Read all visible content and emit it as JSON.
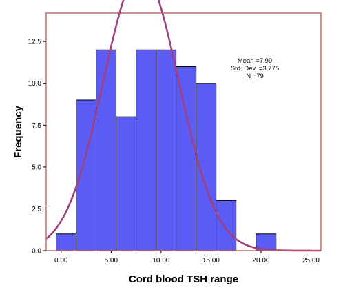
{
  "chart_data": {
    "type": "bar",
    "subtype": "histogram",
    "xlabel": "Cord blood TSH range",
    "ylabel": "Frequency",
    "xlim": [
      -1.5,
      26.0
    ],
    "ylim": [
      0,
      14.2
    ],
    "x_ticks": [
      0,
      5,
      10,
      15,
      20,
      25
    ],
    "x_tick_labels": [
      "0.00",
      "5.00",
      "10.00",
      "15.00",
      "20.00",
      "25.00"
    ],
    "y_ticks": [
      0,
      2.5,
      5,
      7.5,
      10,
      12.5
    ],
    "y_tick_labels": [
      "0.0",
      "2.5",
      "5.0",
      "7.5",
      "10.0",
      "12.5"
    ],
    "bins": [
      {
        "x0": -0.5,
        "x1": 1.5,
        "value": 1
      },
      {
        "x0": 1.5,
        "x1": 3.5,
        "value": 9
      },
      {
        "x0": 3.5,
        "x1": 5.5,
        "value": 12
      },
      {
        "x0": 5.5,
        "x1": 7.5,
        "value": 8
      },
      {
        "x0": 7.5,
        "x1": 9.5,
        "value": 12
      },
      {
        "x0": 9.5,
        "x1": 11.5,
        "value": 12
      },
      {
        "x0": 11.5,
        "x1": 13.5,
        "value": 11
      },
      {
        "x0": 13.5,
        "x1": 15.5,
        "value": 10
      },
      {
        "x0": 15.5,
        "x1": 17.5,
        "value": 3
      },
      {
        "x0": 19.5,
        "x1": 21.5,
        "value": 1
      }
    ],
    "normal_curve": {
      "mean": 7.99,
      "sd": 3.775,
      "n": 79,
      "bin_width": 2
    },
    "stats_text": [
      "Mean =7.99",
      "Std. Dev. =3.775",
      "N =79"
    ],
    "legend": "none",
    "grid": false,
    "colors": {
      "bar_fill": "#5a5cf5",
      "bar_stroke": "#000000",
      "curve": "#a0407a",
      "frame": "#c06060",
      "background": "#ffffff"
    }
  }
}
